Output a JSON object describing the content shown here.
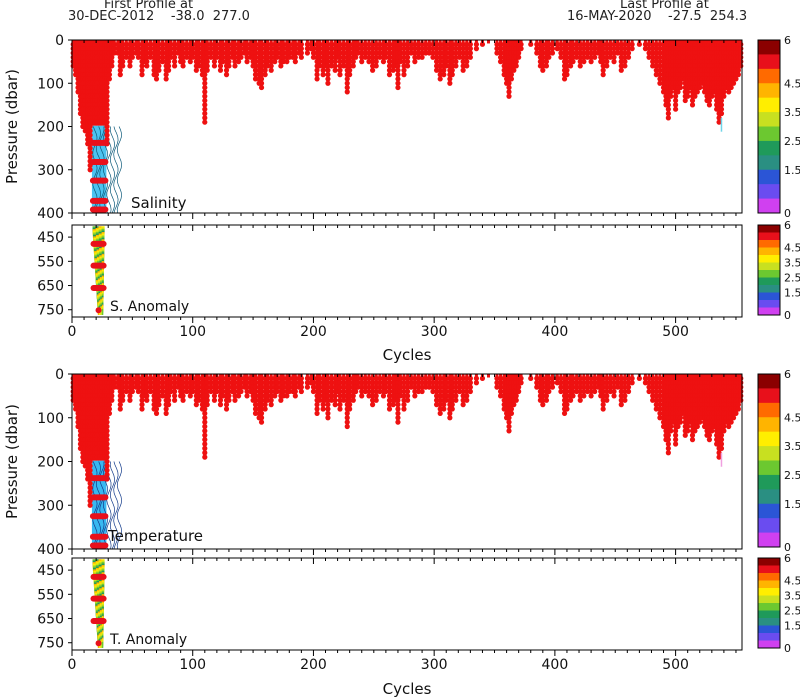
{
  "header": {
    "first_title": "First Profile at",
    "first_info": "30-DEC-2012    -38.0  277.0",
    "last_title": "Last Profile at",
    "last_info": "16-MAY-2020    -27.5  254.3"
  },
  "colorbar": {
    "labels": [
      "6",
      "4.5",
      "3.5",
      "2.5",
      "1.5",
      "0"
    ],
    "colors": [
      "#8b0000",
      "#e8101b",
      "#ff6a00",
      "#ffb400",
      "#ffee00",
      "#c8e020",
      "#6cc830",
      "#1f9a5a",
      "#2a8f82",
      "#2b55d6",
      "#6a4cf0",
      "#d040f0"
    ]
  },
  "chart_data": [
    {
      "type": "scatter",
      "name": "salinity-section",
      "label": "Salinity",
      "anomaly_label": "S. Anomaly",
      "xlabel": "Cycles",
      "ylabel": "Pressure (dbar)",
      "xlim": [
        0,
        555
      ],
      "xticks": [
        0,
        100,
        200,
        300,
        400,
        500
      ],
      "upper_ylim": [
        0,
        400
      ],
      "upper_yticks": [
        0,
        100,
        200,
        300,
        400
      ],
      "lower_ylim": [
        400,
        780
      ],
      "lower_yticks": [
        450,
        550,
        650,
        750
      ],
      "profile_max_pressure_dbar": [
        [
          1,
          60
        ],
        [
          3,
          80
        ],
        [
          5,
          120
        ],
        [
          7,
          170
        ],
        [
          9,
          205
        ],
        [
          11,
          215
        ],
        [
          13,
          240
        ],
        [
          15,
          300
        ],
        [
          17,
          400
        ],
        [
          19,
          400
        ],
        [
          21,
          400
        ],
        [
          23,
          400
        ],
        [
          25,
          400
        ],
        [
          27,
          400
        ],
        [
          29,
          240
        ],
        [
          31,
          90
        ],
        [
          33,
          60
        ],
        [
          35,
          30
        ],
        [
          38,
          35
        ],
        [
          40,
          80
        ],
        [
          42,
          65
        ],
        [
          45,
          40
        ],
        [
          48,
          60
        ],
        [
          50,
          45
        ],
        [
          53,
          30
        ],
        [
          55,
          40
        ],
        [
          58,
          80
        ],
        [
          60,
          50
        ],
        [
          62,
          65
        ],
        [
          65,
          45
        ],
        [
          68,
          80
        ],
        [
          70,
          95
        ],
        [
          72,
          70
        ],
        [
          75,
          55
        ],
        [
          78,
          95
        ],
        [
          80,
          70
        ],
        [
          82,
          40
        ],
        [
          85,
          65
        ],
        [
          88,
          30
        ],
        [
          90,
          50
        ],
        [
          92,
          60
        ],
        [
          95,
          45
        ],
        [
          98,
          55
        ],
        [
          100,
          40
        ],
        [
          103,
          70
        ],
        [
          105,
          60
        ],
        [
          108,
          80
        ],
        [
          110,
          190
        ],
        [
          112,
          70
        ],
        [
          115,
          40
        ],
        [
          118,
          60
        ],
        [
          120,
          45
        ],
        [
          123,
          70
        ],
        [
          125,
          55
        ],
        [
          128,
          80
        ],
        [
          130,
          60
        ],
        [
          133,
          45
        ],
        [
          135,
          60
        ],
        [
          138,
          50
        ],
        [
          140,
          40
        ],
        [
          143,
          30
        ],
        [
          145,
          55
        ],
        [
          148,
          45
        ],
        [
          150,
          60
        ],
        [
          152,
          90
        ],
        [
          155,
          100
        ],
        [
          157,
          110
        ],
        [
          160,
          80
        ],
        [
          162,
          60
        ],
        [
          165,
          75
        ],
        [
          168,
          55
        ],
        [
          170,
          40
        ],
        [
          173,
          60
        ],
        [
          175,
          55
        ],
        [
          178,
          50
        ],
        [
          180,
          45
        ],
        [
          183,
          40
        ],
        [
          185,
          50
        ],
        [
          188,
          35
        ],
        [
          190,
          45
        ],
        [
          195,
          30
        ],
        [
          198,
          25
        ],
        [
          200,
          40
        ],
        [
          203,
          90
        ],
        [
          205,
          60
        ],
        [
          208,
          80
        ],
        [
          210,
          60
        ],
        [
          212,
          100
        ],
        [
          215,
          60
        ],
        [
          218,
          70
        ],
        [
          220,
          40
        ],
        [
          222,
          85
        ],
        [
          225,
          60
        ],
        [
          228,
          120
        ],
        [
          230,
          80
        ],
        [
          233,
          60
        ],
        [
          235,
          45
        ],
        [
          237,
          30
        ],
        [
          240,
          55
        ],
        [
          243,
          40
        ],
        [
          246,
          50
        ],
        [
          249,
          70
        ],
        [
          252,
          60
        ],
        [
          255,
          45
        ],
        [
          258,
          55
        ],
        [
          260,
          40
        ],
        [
          263,
          80
        ],
        [
          266,
          75
        ],
        [
          268,
          60
        ],
        [
          270,
          110
        ],
        [
          272,
          50
        ],
        [
          275,
          85
        ],
        [
          278,
          60
        ],
        [
          281,
          30
        ],
        [
          284,
          50
        ],
        [
          287,
          40
        ],
        [
          290,
          45
        ],
        [
          293,
          35
        ],
        [
          296,
          30
        ],
        [
          299,
          40
        ],
        [
          302,
          70
        ],
        [
          305,
          90
        ],
        [
          308,
          80
        ],
        [
          310,
          60
        ],
        [
          313,
          100
        ],
        [
          315,
          80
        ],
        [
          318,
          60
        ],
        [
          321,
          45
        ],
        [
          324,
          70
        ],
        [
          327,
          60
        ],
        [
          330,
          40
        ],
        [
          335,
          20
        ],
        [
          340,
          10
        ],
        [
          345,
          8
        ],
        [
          352,
          30
        ],
        [
          355,
          50
        ],
        [
          358,
          80
        ],
        [
          360,
          100
        ],
        [
          362,
          130
        ],
        [
          364,
          90
        ],
        [
          366,
          70
        ],
        [
          368,
          60
        ],
        [
          370,
          40
        ],
        [
          372,
          20
        ],
        [
          380,
          15
        ],
        [
          385,
          30
        ],
        [
          388,
          60
        ],
        [
          390,
          75
        ],
        [
          393,
          60
        ],
        [
          395,
          40
        ],
        [
          398,
          30
        ],
        [
          402,
          25
        ],
        [
          405,
          40
        ],
        [
          408,
          90
        ],
        [
          410,
          80
        ],
        [
          413,
          60
        ],
        [
          415,
          50
        ],
        [
          418,
          40
        ],
        [
          421,
          65
        ],
        [
          424,
          50
        ],
        [
          427,
          40
        ],
        [
          430,
          55
        ],
        [
          433,
          40
        ],
        [
          436,
          30
        ],
        [
          438,
          50
        ],
        [
          440,
          80
        ],
        [
          443,
          60
        ],
        [
          446,
          40
        ],
        [
          449,
          55
        ],
        [
          452,
          30
        ],
        [
          455,
          70
        ],
        [
          458,
          60
        ],
        [
          461,
          40
        ],
        [
          464,
          20
        ],
        [
          470,
          15
        ],
        [
          475,
          20
        ],
        [
          478,
          40
        ],
        [
          481,
          60
        ],
        [
          484,
          80
        ],
        [
          487,
          100
        ],
        [
          490,
          120
        ],
        [
          492,
          150
        ],
        [
          494,
          185
        ],
        [
          496,
          130
        ],
        [
          498,
          110
        ],
        [
          500,
          160
        ],
        [
          502,
          120
        ],
        [
          504,
          110
        ],
        [
          506,
          95
        ],
        [
          508,
          140
        ],
        [
          510,
          130
        ],
        [
          512,
          110
        ],
        [
          514,
          150
        ],
        [
          516,
          130
        ],
        [
          518,
          120
        ],
        [
          520,
          110
        ],
        [
          522,
          100
        ],
        [
          524,
          120
        ],
        [
          526,
          140
        ],
        [
          528,
          150
        ],
        [
          530,
          130
        ],
        [
          532,
          120
        ],
        [
          534,
          160
        ],
        [
          536,
          190
        ],
        [
          538,
          175
        ],
        [
          540,
          130
        ],
        [
          542,
          115
        ],
        [
          544,
          120
        ],
        [
          546,
          110
        ],
        [
          548,
          100
        ],
        [
          550,
          90
        ],
        [
          552,
          80
        ],
        [
          554,
          60
        ]
      ]
    },
    {
      "type": "scatter",
      "name": "temperature-section",
      "label": "Temperature",
      "anomaly_label": "T. Anomaly",
      "xlabel": "Cycles",
      "ylabel": "Pressure (dbar)",
      "xlim": [
        0,
        555
      ],
      "xticks": [
        0,
        100,
        200,
        300,
        400,
        500
      ],
      "upper_ylim": [
        0,
        400
      ],
      "upper_yticks": [
        0,
        100,
        200,
        300,
        400
      ],
      "lower_ylim": [
        400,
        780
      ],
      "lower_yticks": [
        450,
        550,
        650,
        750
      ],
      "profile_max_pressure_dbar": "same as salinity-section"
    }
  ]
}
